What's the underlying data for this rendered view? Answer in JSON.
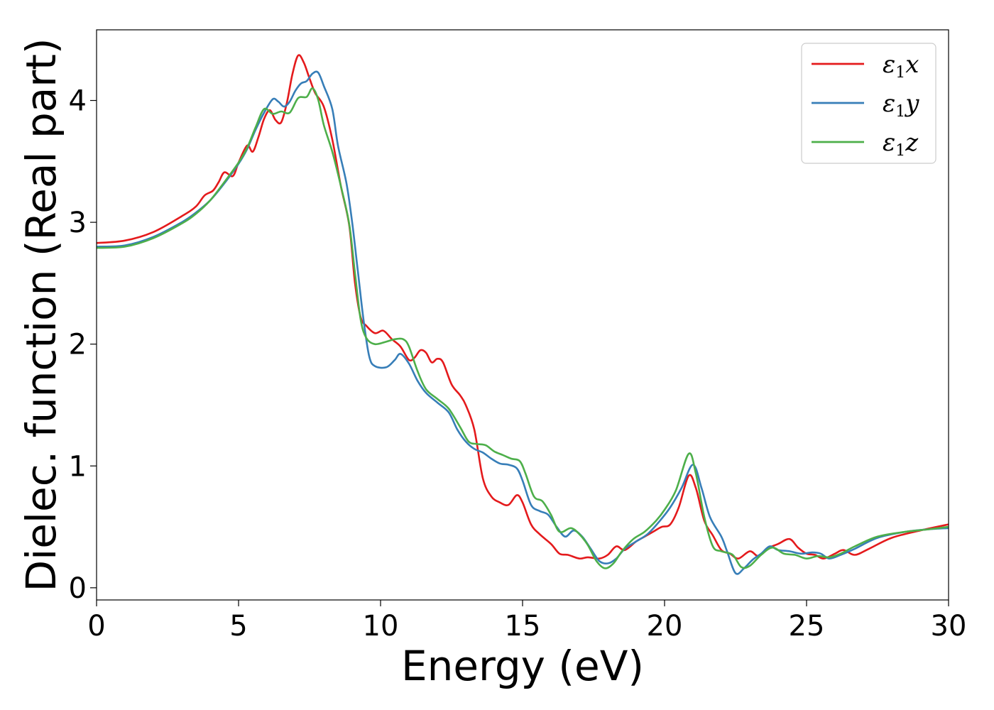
{
  "chart_data": {
    "type": "line",
    "xlabel": "Energy (eV)",
    "ylabel": "Dielec. function (Real part)",
    "xlim": [
      0,
      30
    ],
    "ylim": [
      -0.1,
      4.58
    ],
    "xticks": [
      0,
      5,
      10,
      15,
      20,
      25,
      30
    ],
    "yticks": [
      0,
      1,
      2,
      3,
      4
    ],
    "grid": false,
    "legend_position": "top-right",
    "series": [
      {
        "name": "ε1x",
        "legend": {
          "base": "ε",
          "sub": "1",
          "comp": "x"
        },
        "color": "#e41a1c",
        "points": [
          [
            0,
            2.83
          ],
          [
            1,
            2.85
          ],
          [
            2,
            2.92
          ],
          [
            3,
            3.05
          ],
          [
            3.5,
            3.13
          ],
          [
            3.8,
            3.22
          ],
          [
            4.1,
            3.26
          ],
          [
            4.3,
            3.33
          ],
          [
            4.5,
            3.41
          ],
          [
            4.8,
            3.38
          ],
          [
            5,
            3.49
          ],
          [
            5.3,
            3.63
          ],
          [
            5.5,
            3.58
          ],
          [
            5.7,
            3.7
          ],
          [
            5.9,
            3.85
          ],
          [
            6.1,
            3.92
          ],
          [
            6.3,
            3.84
          ],
          [
            6.5,
            3.82
          ],
          [
            6.7,
            3.98
          ],
          [
            6.9,
            4.22
          ],
          [
            7.1,
            4.37
          ],
          [
            7.3,
            4.31
          ],
          [
            7.5,
            4.18
          ],
          [
            7.7,
            4.06
          ],
          [
            8,
            3.95
          ],
          [
            8.3,
            3.68
          ],
          [
            8.6,
            3.3
          ],
          [
            8.9,
            2.97
          ],
          [
            9.1,
            2.5
          ],
          [
            9.3,
            2.22
          ],
          [
            9.5,
            2.15
          ],
          [
            9.8,
            2.09
          ],
          [
            10.1,
            2.11
          ],
          [
            10.4,
            2.04
          ],
          [
            10.7,
            1.98
          ],
          [
            11,
            1.87
          ],
          [
            11.2,
            1.89
          ],
          [
            11.4,
            1.95
          ],
          [
            11.6,
            1.93
          ],
          [
            11.8,
            1.85
          ],
          [
            12,
            1.88
          ],
          [
            12.2,
            1.85
          ],
          [
            12.5,
            1.67
          ],
          [
            12.8,
            1.58
          ],
          [
            13,
            1.5
          ],
          [
            13.3,
            1.3
          ],
          [
            13.6,
            0.9
          ],
          [
            13.9,
            0.75
          ],
          [
            14.2,
            0.7
          ],
          [
            14.5,
            0.68
          ],
          [
            14.8,
            0.76
          ],
          [
            15,
            0.7
          ],
          [
            15.3,
            0.52
          ],
          [
            15.6,
            0.44
          ],
          [
            16,
            0.36
          ],
          [
            16.3,
            0.28
          ],
          [
            16.6,
            0.27
          ],
          [
            17,
            0.24
          ],
          [
            17.3,
            0.25
          ],
          [
            17.7,
            0.24
          ],
          [
            18,
            0.27
          ],
          [
            18.3,
            0.34
          ],
          [
            18.6,
            0.31
          ],
          [
            19,
            0.38
          ],
          [
            19.3,
            0.42
          ],
          [
            19.6,
            0.46
          ],
          [
            19.9,
            0.5
          ],
          [
            20.2,
            0.52
          ],
          [
            20.5,
            0.66
          ],
          [
            20.85,
            0.92
          ],
          [
            21.1,
            0.82
          ],
          [
            21.4,
            0.55
          ],
          [
            21.7,
            0.43
          ],
          [
            22,
            0.31
          ],
          [
            22.3,
            0.28
          ],
          [
            22.6,
            0.24
          ],
          [
            23,
            0.3
          ],
          [
            23.3,
            0.26
          ],
          [
            23.6,
            0.32
          ],
          [
            24,
            0.36
          ],
          [
            24.4,
            0.4
          ],
          [
            24.7,
            0.33
          ],
          [
            25,
            0.28
          ],
          [
            25.3,
            0.27
          ],
          [
            25.6,
            0.24
          ],
          [
            26,
            0.28
          ],
          [
            26.3,
            0.31
          ],
          [
            26.7,
            0.27
          ],
          [
            27.2,
            0.32
          ],
          [
            28,
            0.41
          ],
          [
            29,
            0.47
          ],
          [
            30,
            0.52
          ]
        ]
      },
      {
        "name": "ε1y",
        "legend": {
          "base": "ε",
          "sub": "1",
          "comp": "y"
        },
        "color": "#377eb8",
        "points": [
          [
            0,
            2.8
          ],
          [
            1,
            2.81
          ],
          [
            2,
            2.88
          ],
          [
            3,
            3.0
          ],
          [
            3.5,
            3.08
          ],
          [
            4,
            3.18
          ],
          [
            4.5,
            3.32
          ],
          [
            5,
            3.48
          ],
          [
            5.3,
            3.6
          ],
          [
            5.6,
            3.76
          ],
          [
            5.9,
            3.9
          ],
          [
            6.2,
            4.01
          ],
          [
            6.4,
            3.99
          ],
          [
            6.6,
            3.95
          ],
          [
            6.8,
            3.99
          ],
          [
            7,
            4.08
          ],
          [
            7.2,
            4.14
          ],
          [
            7.4,
            4.16
          ],
          [
            7.6,
            4.22
          ],
          [
            7.8,
            4.23
          ],
          [
            8,
            4.12
          ],
          [
            8.3,
            3.93
          ],
          [
            8.5,
            3.63
          ],
          [
            8.8,
            3.32
          ],
          [
            9,
            3.0
          ],
          [
            9.2,
            2.6
          ],
          [
            9.4,
            2.2
          ],
          [
            9.6,
            1.9
          ],
          [
            9.8,
            1.82
          ],
          [
            10.2,
            1.81
          ],
          [
            10.5,
            1.87
          ],
          [
            10.7,
            1.92
          ],
          [
            11,
            1.84
          ],
          [
            11.3,
            1.7
          ],
          [
            11.6,
            1.6
          ],
          [
            12,
            1.52
          ],
          [
            12.4,
            1.44
          ],
          [
            12.7,
            1.3
          ],
          [
            13,
            1.2
          ],
          [
            13.3,
            1.14
          ],
          [
            13.6,
            1.11
          ],
          [
            13.9,
            1.06
          ],
          [
            14.2,
            1.02
          ],
          [
            14.5,
            1.01
          ],
          [
            14.8,
            0.98
          ],
          [
            15,
            0.88
          ],
          [
            15.3,
            0.68
          ],
          [
            15.6,
            0.63
          ],
          [
            15.9,
            0.6
          ],
          [
            16.2,
            0.5
          ],
          [
            16.5,
            0.42
          ],
          [
            16.8,
            0.47
          ],
          [
            17.1,
            0.42
          ],
          [
            17.4,
            0.32
          ],
          [
            17.7,
            0.22
          ],
          [
            18,
            0.2
          ],
          [
            18.3,
            0.24
          ],
          [
            18.6,
            0.32
          ],
          [
            19,
            0.38
          ],
          [
            19.4,
            0.44
          ],
          [
            19.8,
            0.54
          ],
          [
            20.2,
            0.66
          ],
          [
            20.6,
            0.82
          ],
          [
            21,
            1.01
          ],
          [
            21.3,
            0.82
          ],
          [
            21.6,
            0.58
          ],
          [
            22,
            0.42
          ],
          [
            22.2,
            0.3
          ],
          [
            22.5,
            0.12
          ],
          [
            22.8,
            0.16
          ],
          [
            23.1,
            0.23
          ],
          [
            23.4,
            0.28
          ],
          [
            23.7,
            0.34
          ],
          [
            24,
            0.31
          ],
          [
            24.4,
            0.3
          ],
          [
            24.8,
            0.28
          ],
          [
            25.2,
            0.29
          ],
          [
            25.5,
            0.28
          ],
          [
            25.8,
            0.24
          ],
          [
            26.2,
            0.27
          ],
          [
            26.7,
            0.32
          ],
          [
            27.5,
            0.41
          ],
          [
            28.5,
            0.46
          ],
          [
            29.3,
            0.48
          ],
          [
            30,
            0.49
          ]
        ]
      },
      {
        "name": "ε1z",
        "legend": {
          "base": "ε",
          "sub": "1",
          "comp": "z"
        },
        "color": "#4daf4a",
        "points": [
          [
            0,
            2.79
          ],
          [
            1,
            2.8
          ],
          [
            2,
            2.87
          ],
          [
            3,
            2.99
          ],
          [
            3.5,
            3.07
          ],
          [
            4,
            3.18
          ],
          [
            4.5,
            3.33
          ],
          [
            5,
            3.49
          ],
          [
            5.3,
            3.61
          ],
          [
            5.6,
            3.78
          ],
          [
            5.9,
            3.93
          ],
          [
            6.2,
            3.89
          ],
          [
            6.5,
            3.91
          ],
          [
            6.8,
            3.9
          ],
          [
            7.1,
            4.02
          ],
          [
            7.4,
            4.03
          ],
          [
            7.6,
            4.1
          ],
          [
            7.8,
            4.01
          ],
          [
            8,
            3.8
          ],
          [
            8.3,
            3.58
          ],
          [
            8.6,
            3.3
          ],
          [
            8.9,
            2.98
          ],
          [
            9.1,
            2.58
          ],
          [
            9.3,
            2.2
          ],
          [
            9.5,
            2.05
          ],
          [
            9.8,
            2.0
          ],
          [
            10.2,
            2.02
          ],
          [
            10.5,
            2.04
          ],
          [
            10.8,
            2.04
          ],
          [
            11,
            1.98
          ],
          [
            11.3,
            1.78
          ],
          [
            11.6,
            1.63
          ],
          [
            12,
            1.55
          ],
          [
            12.4,
            1.47
          ],
          [
            12.8,
            1.32
          ],
          [
            13.1,
            1.2
          ],
          [
            13.4,
            1.18
          ],
          [
            13.7,
            1.17
          ],
          [
            14,
            1.12
          ],
          [
            14.3,
            1.09
          ],
          [
            14.6,
            1.06
          ],
          [
            14.9,
            1.04
          ],
          [
            15.1,
            0.94
          ],
          [
            15.4,
            0.75
          ],
          [
            15.7,
            0.71
          ],
          [
            16,
            0.6
          ],
          [
            16.3,
            0.46
          ],
          [
            16.7,
            0.49
          ],
          [
            17,
            0.44
          ],
          [
            17.3,
            0.35
          ],
          [
            17.6,
            0.22
          ],
          [
            17.9,
            0.16
          ],
          [
            18.2,
            0.2
          ],
          [
            18.5,
            0.3
          ],
          [
            18.9,
            0.4
          ],
          [
            19.3,
            0.46
          ],
          [
            19.7,
            0.55
          ],
          [
            20,
            0.64
          ],
          [
            20.4,
            0.8
          ],
          [
            20.85,
            1.1
          ],
          [
            21.1,
            0.94
          ],
          [
            21.4,
            0.58
          ],
          [
            21.7,
            0.34
          ],
          [
            22,
            0.3
          ],
          [
            22.4,
            0.27
          ],
          [
            22.7,
            0.17
          ],
          [
            23,
            0.18
          ],
          [
            23.4,
            0.27
          ],
          [
            23.8,
            0.33
          ],
          [
            24.2,
            0.28
          ],
          [
            24.6,
            0.27
          ],
          [
            25,
            0.24
          ],
          [
            25.4,
            0.26
          ],
          [
            25.8,
            0.25
          ],
          [
            26.2,
            0.28
          ],
          [
            26.7,
            0.34
          ],
          [
            27.5,
            0.42
          ],
          [
            28.5,
            0.46
          ],
          [
            29.3,
            0.48
          ],
          [
            30,
            0.5
          ]
        ]
      }
    ]
  }
}
